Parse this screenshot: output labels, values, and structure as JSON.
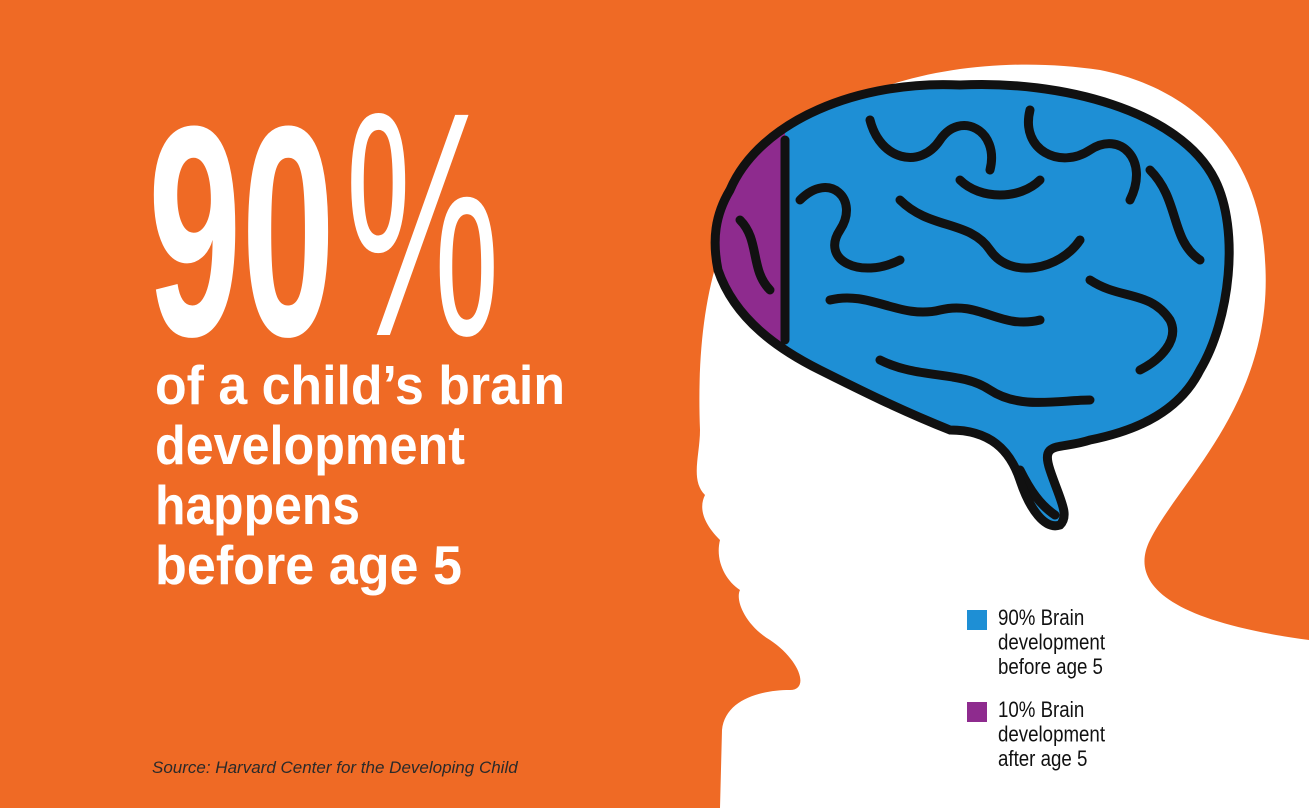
{
  "headline": {
    "number": "90",
    "symbol": "%"
  },
  "body_lines": [
    "of a child’s brain",
    "development",
    "happens",
    "before age 5"
  ],
  "legend": [
    {
      "color": "#1e8fd5",
      "lines": [
        "90% Brain",
        "development",
        "before age 5"
      ]
    },
    {
      "color": "#8e2b8e",
      "lines": [
        "10% Brain",
        "development",
        "after age 5"
      ]
    }
  ],
  "source": "Source: Harvard Center for the Developing Child"
}
